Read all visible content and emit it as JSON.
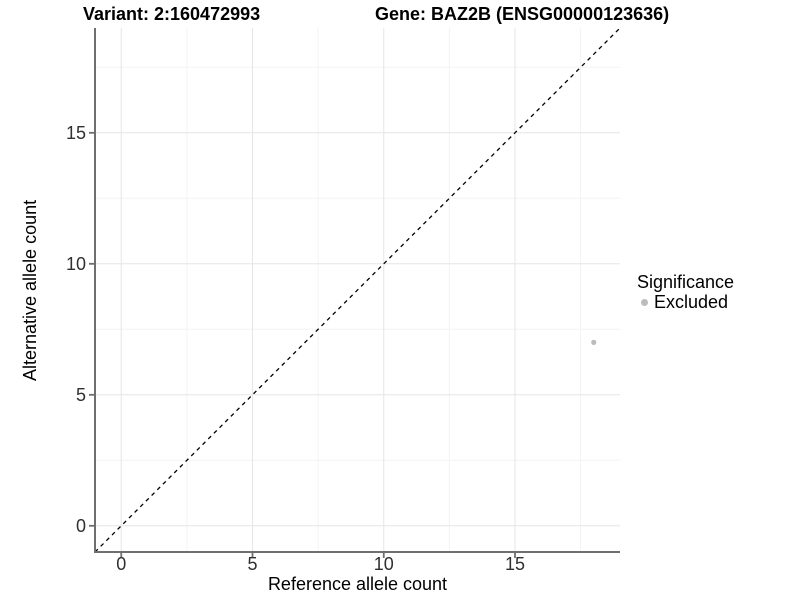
{
  "header": {
    "variant_title": "Variant: 2:160472993",
    "gene_title": "Gene: BAZ2B (ENSG00000123636)"
  },
  "axes": {
    "x_title": "Reference allele count",
    "y_title": "Alternative allele count"
  },
  "legend": {
    "title": "Significance",
    "items": [
      {
        "label": "Excluded",
        "color": "#bcbcbc"
      }
    ]
  },
  "chart_data": {
    "type": "scatter",
    "title": "Variant: 2:160472993 — Gene: BAZ2B (ENSG00000123636)",
    "xlabel": "Reference allele count",
    "ylabel": "Alternative allele count",
    "xlim": [
      -1,
      19
    ],
    "ylim": [
      -1,
      19
    ],
    "x_ticks": [
      0,
      5,
      10,
      15
    ],
    "y_ticks": [
      0,
      5,
      10,
      15
    ],
    "x_minor_ticks": [
      2.5,
      7.5,
      12.5,
      17.5
    ],
    "y_minor_ticks": [
      2.5,
      7.5,
      12.5,
      17.5
    ],
    "grid": "major and minor gridlines, light gray on white, left/bottom axis lines only",
    "legend_position": "right",
    "series": [
      {
        "name": "Excluded",
        "color": "#bcbcbc",
        "points": [
          {
            "x": 18,
            "y": 7
          }
        ]
      }
    ],
    "annotations": [
      {
        "type": "abline",
        "label": "identity line y = x",
        "slope": 1,
        "intercept": 0,
        "style": "dashed",
        "color": "#000000"
      }
    ]
  },
  "colors": {
    "background": "#ffffff",
    "axis_line": "#6f6f6f",
    "tick_label": "#303030",
    "grid_major": "#e6e6e6",
    "grid_minor": "#f3f3f3",
    "dashed_line": "#000000",
    "point": "#bcbcbc",
    "text": "#000000"
  }
}
